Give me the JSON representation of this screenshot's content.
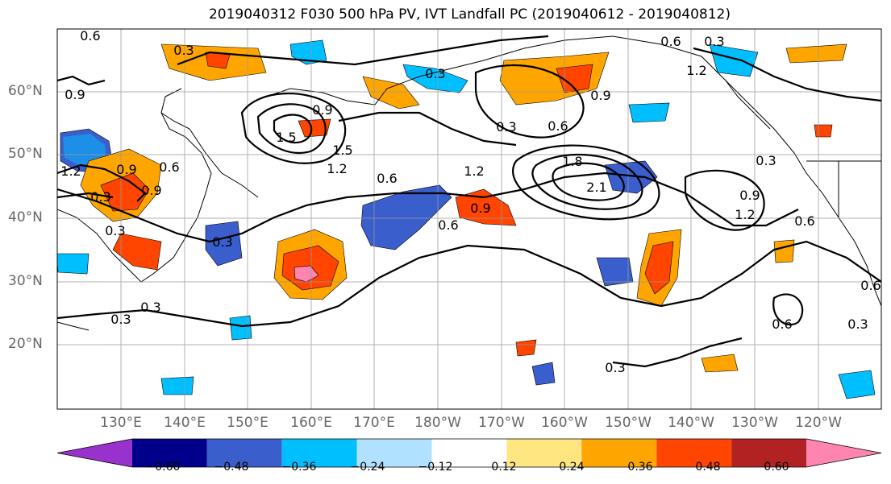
{
  "title": "2019040312 F030 500 hPa PV, IVT Landfall PC (2019040612 - 2019040812)",
  "lat_labels": [
    "20°N",
    "30°N",
    "40°N",
    "50°N",
    "60°N"
  ],
  "lon_labels": [
    "130°E",
    "140°E",
    "150°E",
    "160°E",
    "170°E",
    "180°W",
    "170°W",
    "160°W",
    "150°W",
    "140°W",
    "130°W",
    "120°W"
  ],
  "colorbar": {
    "colors": [
      "#9932cc",
      "#00008b",
      "#3a5fcd",
      "#00bfff",
      "#b0e2ff",
      "#ffffff",
      "#ffe680",
      "#ffa500",
      "#ff4500",
      "#b22222",
      "#ff85b0"
    ],
    "tick_labels": [
      "−0.60",
      "−0.48",
      "−0.36",
      "−0.24",
      "−0.12",
      "0.12",
      "0.24",
      "0.36",
      "0.48",
      "0.60"
    ]
  },
  "contour_labels": [
    "0.6",
    "0.3",
    "0.9",
    "1.2",
    "1.5",
    "0.9",
    "0.6",
    "0.3",
    "0.6",
    "0.3",
    "1.2",
    "0.9",
    "1.5",
    "1.2",
    "0.6",
    "1.2",
    "0.9",
    "0.6",
    "1.8",
    "2.1",
    "0.3",
    "0.9",
    "1.2",
    "0.6",
    "0.3",
    "0.3",
    "0.3",
    "0.6",
    "0.3",
    "0.3",
    "0.6",
    "0.3",
    "0.3",
    "0.6",
    "0.3",
    "0.9",
    "0.9"
  ]
}
